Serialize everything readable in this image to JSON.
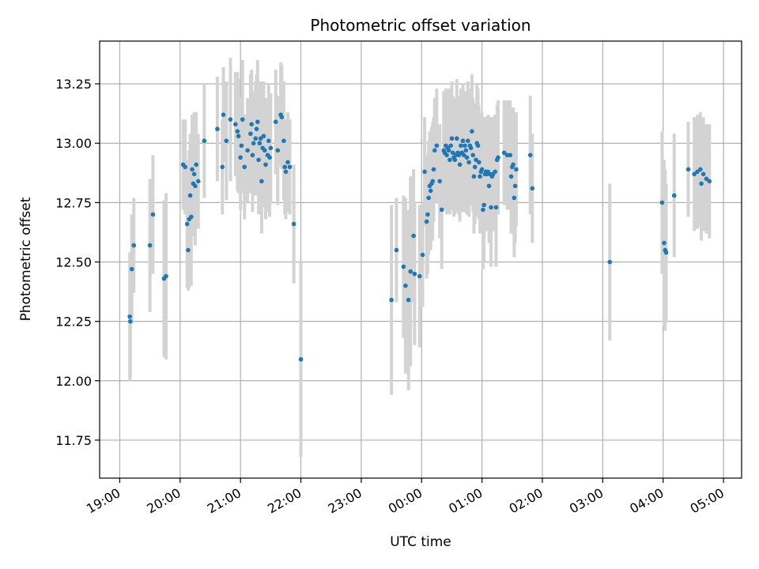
{
  "chart_data": {
    "type": "scatter",
    "title": "Photometric offset variation",
    "xlabel": "UTC time",
    "ylabel": "Photometric offset",
    "x_unit": "minutes since 19:00 UTC",
    "xlim": [
      -20,
      618
    ],
    "ylim": [
      11.59,
      13.43
    ],
    "grid": true,
    "colors": {
      "point": "#1f77b4",
      "errorbar": "#d3d3d3",
      "grid": "#b0b0b0",
      "axes": "#000000"
    },
    "x_ticks": [
      {
        "v": 0,
        "label": "19:00"
      },
      {
        "v": 60,
        "label": "20:00"
      },
      {
        "v": 120,
        "label": "21:00"
      },
      {
        "v": 180,
        "label": "22:00"
      },
      {
        "v": 240,
        "label": "23:00"
      },
      {
        "v": 300,
        "label": "00:00"
      },
      {
        "v": 360,
        "label": "01:00"
      },
      {
        "v": 420,
        "label": "02:00"
      },
      {
        "v": 480,
        "label": "03:00"
      },
      {
        "v": 540,
        "label": "04:00"
      },
      {
        "v": 600,
        "label": "05:00"
      }
    ],
    "y_ticks": [
      {
        "v": 11.75,
        "label": "11.75"
      },
      {
        "v": 12.0,
        "label": "12.00"
      },
      {
        "v": 12.25,
        "label": "12.25"
      },
      {
        "v": 12.5,
        "label": "12.50"
      },
      {
        "v": 12.75,
        "label": "12.75"
      },
      {
        "v": 13.0,
        "label": "13.00"
      },
      {
        "v": 13.25,
        "label": "13.25"
      }
    ],
    "points": [
      [
        10,
        12.27,
        0.27
      ],
      [
        10.5,
        12.25,
        0.24
      ],
      [
        12,
        12.47,
        0.23
      ],
      [
        14,
        12.57,
        0.2
      ],
      [
        30,
        12.57,
        0.28
      ],
      [
        33,
        12.7,
        0.25
      ],
      [
        44,
        12.43,
        0.33
      ],
      [
        46,
        12.44,
        0.35
      ],
      [
        63,
        12.91,
        0.19
      ],
      [
        65,
        12.9,
        0.2
      ],
      [
        67,
        12.66,
        0.27
      ],
      [
        68,
        12.55,
        0.17
      ],
      [
        69,
        12.68,
        0.29
      ],
      [
        70,
        12.78,
        0.26
      ],
      [
        71,
        12.69,
        0.29
      ],
      [
        72,
        12.89,
        0.23
      ],
      [
        73,
        12.83,
        0.22
      ],
      [
        74,
        12.87,
        0.26
      ],
      [
        75,
        12.82,
        0.25
      ],
      [
        76,
        12.91,
        0.22
      ],
      [
        78,
        12.84,
        0.2
      ],
      [
        84,
        13.01,
        0.24
      ],
      [
        97,
        13.06,
        0.22
      ],
      [
        102,
        12.9,
        0.2
      ],
      [
        103,
        13.12,
        0.2
      ],
      [
        106,
        13.01,
        0.25
      ],
      [
        110,
        13.1,
        0.26
      ],
      [
        115,
        13.08,
        0.22
      ],
      [
        117,
        13.05,
        0.25
      ],
      [
        118,
        13.03,
        0.24
      ],
      [
        120,
        12.94,
        0.22
      ],
      [
        121,
        12.99,
        0.2
      ],
      [
        122,
        13.1,
        0.25
      ],
      [
        124,
        12.9,
        0.22
      ],
      [
        127,
        12.97,
        0.22
      ],
      [
        130,
        13.04,
        0.25
      ],
      [
        131,
        13.08,
        0.23
      ],
      [
        132,
        12.95,
        0.24
      ],
      [
        133,
        13.0,
        0.22
      ],
      [
        135,
        13.02,
        0.24
      ],
      [
        136,
        13.06,
        0.23
      ],
      [
        137,
        13.09,
        0.26
      ],
      [
        138,
        12.93,
        0.23
      ],
      [
        139,
        13.0,
        0.21
      ],
      [
        140,
        13.02,
        0.24
      ],
      [
        141,
        12.84,
        0.22
      ],
      [
        142,
        12.98,
        0.25
      ],
      [
        143,
        13.03,
        0.23
      ],
      [
        144,
        12.97,
        0.22
      ],
      [
        145,
        12.91,
        0.23
      ],
      [
        147,
        12.95,
        0.24
      ],
      [
        148,
        13.01,
        0.24
      ],
      [
        149,
        12.94,
        0.25
      ],
      [
        150,
        12.98,
        0.23
      ],
      [
        155,
        13.09,
        0.22
      ],
      [
        157,
        12.97,
        0.23
      ],
      [
        160,
        13.12,
        0.22
      ],
      [
        161,
        13.11,
        0.22
      ],
      [
        163,
        13.01,
        0.25
      ],
      [
        164,
        12.9,
        0.2
      ],
      [
        165,
        12.88,
        0.2
      ],
      [
        167,
        12.92,
        0.21
      ],
      [
        169,
        12.9,
        0.2
      ],
      [
        173,
        12.66,
        0.25
      ],
      [
        180,
        12.09,
        0.41
      ],
      [
        270,
        12.34,
        0.4
      ],
      [
        275,
        12.55,
        0.22
      ],
      [
        282,
        12.48,
        0.3
      ],
      [
        284,
        12.4,
        0.37
      ],
      [
        287,
        12.34,
        0.38
      ],
      [
        289,
        12.46,
        0.4
      ],
      [
        292,
        12.61,
        0.28
      ],
      [
        293,
        12.45,
        0.3
      ],
      [
        298,
        12.44,
        0.3
      ],
      [
        301,
        12.53,
        0.22
      ],
      [
        303,
        12.88,
        0.23
      ],
      [
        305,
        12.67,
        0.24
      ],
      [
        306,
        12.7,
        0.25
      ],
      [
        307,
        12.77,
        0.24
      ],
      [
        308,
        12.82,
        0.23
      ],
      [
        309,
        12.8,
        0.25
      ],
      [
        310,
        12.83,
        0.24
      ],
      [
        311,
        12.84,
        0.25
      ],
      [
        312,
        12.89,
        0.22
      ],
      [
        313,
        12.97,
        0.22
      ],
      [
        315,
        12.99,
        0.24
      ],
      [
        318,
        12.84,
        0.24
      ],
      [
        320,
        12.72,
        0.25
      ],
      [
        322,
        12.97,
        0.25
      ],
      [
        323,
        12.96,
        0.24
      ],
      [
        324,
        12.99,
        0.24
      ],
      [
        325,
        12.95,
        0.25
      ],
      [
        326,
        12.98,
        0.25
      ],
      [
        327,
        12.97,
        0.24
      ],
      [
        328,
        12.93,
        0.23
      ],
      [
        329,
        12.99,
        0.24
      ],
      [
        330,
        13.02,
        0.24
      ],
      [
        331,
        12.96,
        0.24
      ],
      [
        332,
        12.94,
        0.25
      ],
      [
        333,
        12.93,
        0.23
      ],
      [
        334,
        12.95,
        0.24
      ],
      [
        335,
        13.02,
        0.25
      ],
      [
        336,
        12.96,
        0.24
      ],
      [
        337,
        12.95,
        0.25
      ],
      [
        338,
        12.91,
        0.24
      ],
      [
        339,
        12.99,
        0.24
      ],
      [
        340,
        12.96,
        0.25
      ],
      [
        341,
        13.01,
        0.24
      ],
      [
        342,
        12.95,
        0.24
      ],
      [
        343,
        12.99,
        0.23
      ],
      [
        344,
        12.97,
        0.24
      ],
      [
        345,
        12.94,
        0.24
      ],
      [
        346,
        13.01,
        0.25
      ],
      [
        347,
        12.92,
        0.23
      ],
      [
        348,
        12.99,
        0.24
      ],
      [
        349,
        12.98,
        0.24
      ],
      [
        350,
        13.05,
        0.24
      ],
      [
        351,
        12.95,
        0.24
      ],
      [
        352,
        12.86,
        0.24
      ],
      [
        353,
        12.9,
        0.24
      ],
      [
        354,
        12.93,
        0.24
      ],
      [
        355,
        13.0,
        0.25
      ],
      [
        356,
        12.99,
        0.24
      ],
      [
        357,
        12.92,
        0.24
      ],
      [
        358,
        12.86,
        0.24
      ],
      [
        359,
        12.88,
        0.24
      ],
      [
        360,
        12.89,
        0.24
      ],
      [
        361,
        12.72,
        0.25
      ],
      [
        362,
        12.74,
        0.24
      ],
      [
        363,
        12.87,
        0.24
      ],
      [
        364,
        12.88,
        0.23
      ],
      [
        365,
        12.87,
        0.24
      ],
      [
        366,
        12.88,
        0.24
      ],
      [
        367,
        12.82,
        0.24
      ],
      [
        368,
        12.87,
        0.24
      ],
      [
        369,
        12.73,
        0.25
      ],
      [
        370,
        12.86,
        0.23
      ],
      [
        371,
        12.87,
        0.24
      ],
      [
        373,
        12.88,
        0.24
      ],
      [
        374,
        12.73,
        0.25
      ],
      [
        375,
        12.93,
        0.23
      ],
      [
        376,
        12.94,
        0.24
      ],
      [
        382,
        12.96,
        0.22
      ],
      [
        385,
        12.95,
        0.23
      ],
      [
        388,
        12.95,
        0.23
      ],
      [
        389,
        12.86,
        0.24
      ],
      [
        390,
        12.9,
        0.24
      ],
      [
        391,
        12.91,
        0.24
      ],
      [
        392,
        12.77,
        0.25
      ],
      [
        393,
        12.82,
        0.24
      ],
      [
        394,
        12.89,
        0.24
      ],
      [
        408,
        12.95,
        0.25
      ],
      [
        410,
        12.81,
        0.23
      ],
      [
        487,
        12.5,
        0.33
      ],
      [
        539,
        12.75,
        0.3
      ],
      [
        541,
        12.58,
        0.35
      ],
      [
        542,
        12.55,
        0.34
      ],
      [
        543,
        12.54,
        0.29
      ],
      [
        551,
        12.78,
        0.26
      ],
      [
        565,
        12.89,
        0.2
      ],
      [
        571,
        12.87,
        0.24
      ],
      [
        574,
        12.88,
        0.24
      ],
      [
        577,
        12.89,
        0.24
      ],
      [
        578,
        12.83,
        0.24
      ],
      [
        580,
        12.87,
        0.24
      ],
      [
        583,
        12.85,
        0.23
      ],
      [
        586,
        12.84,
        0.24
      ]
    ]
  }
}
